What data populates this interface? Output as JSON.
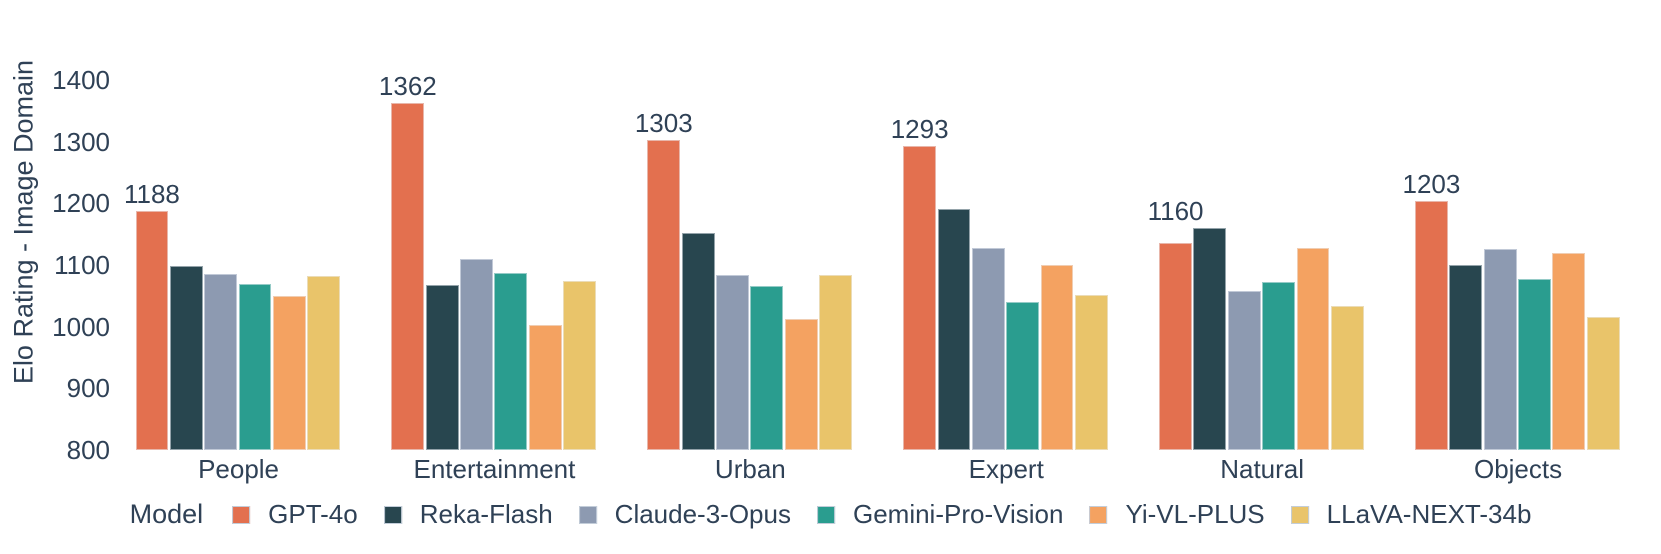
{
  "chart_data": {
    "type": "bar",
    "title": "",
    "xlabel": "",
    "ylabel": "Elo Rating - Image Domain",
    "legend_title": "Model",
    "legend_position": "bottom",
    "grid": false,
    "ylim": [
      800,
      1400
    ],
    "yticks": [
      1400,
      1300,
      1200,
      1100,
      1000,
      900,
      800
    ],
    "categories": [
      "People",
      "Entertainment",
      "Urban",
      "Expert",
      "Natural",
      "Objects"
    ],
    "series": [
      {
        "name": "GPT-4o",
        "color": "#E3704F",
        "values": [
          1188,
          1362,
          1303,
          1293,
          1136,
          1203
        ]
      },
      {
        "name": "Reka-Flash",
        "color": "#28464F",
        "values": [
          1099,
          1068,
          1152,
          1190,
          1160,
          1100
        ]
      },
      {
        "name": "Claude-3-Opus",
        "color": "#8D9AB1",
        "values": [
          1085,
          1110,
          1084,
          1127,
          1058,
          1126
        ]
      },
      {
        "name": "Gemini-Pro-Vision",
        "color": "#2A9D8F",
        "values": [
          1069,
          1087,
          1066,
          1040,
          1073,
          1077
        ]
      },
      {
        "name": "Yi-VL-PLUS",
        "color": "#F4A261",
        "values": [
          1050,
          1002,
          1012,
          1100,
          1127,
          1119
        ]
      },
      {
        "name": "LLaVA-NEXT-34b",
        "color": "#E9C46A",
        "values": [
          1082,
          1074,
          1083,
          1051,
          1034,
          1015
        ]
      }
    ],
    "bar_labels": [
      1188,
      1362,
      1303,
      1293,
      1160,
      1203
    ]
  },
  "colors": {
    "text": "#2F4156",
    "background": "#FFFFFF"
  }
}
